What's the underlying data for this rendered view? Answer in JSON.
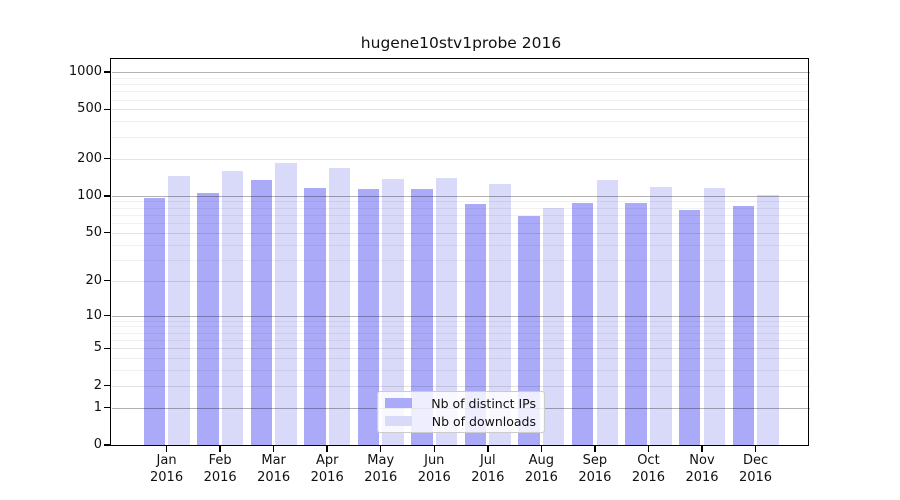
{
  "title": "hugene10stv1probe 2016",
  "chart_data": {
    "type": "bar",
    "title": "hugene10stv1probe 2016",
    "y_scale": "log(1+x)",
    "grid": true,
    "legend_position": "lower center",
    "categories": [
      "Jan 2016",
      "Feb 2016",
      "Mar 2016",
      "Apr 2016",
      "May 2016",
      "Jun 2016",
      "Jul 2016",
      "Aug 2016",
      "Sep 2016",
      "Oct 2016",
      "Nov 2016",
      "Dec 2016"
    ],
    "series": [
      {
        "name": "Nb of distinct IPs",
        "color": "#aaaaf9",
        "values": [
          96,
          106,
          135,
          116,
          113,
          114,
          86,
          68,
          87,
          88,
          77,
          82
        ]
      },
      {
        "name": "Nb of downloads",
        "color": "#d9d9f9",
        "values": [
          145,
          160,
          184,
          167,
          137,
          140,
          126,
          80,
          135,
          118,
          116,
          102
        ]
      }
    ],
    "y_tick_labels": [
      "1000",
      "500",
      "200",
      "100",
      "50",
      "20",
      "10",
      "5",
      "2",
      "1",
      "0"
    ],
    "y_tick_values": [
      1000,
      500,
      200,
      100,
      50,
      20,
      10,
      5,
      2,
      1,
      0
    ],
    "ylim": [
      0,
      1250
    ],
    "colors": {
      "axis": "#000000",
      "major_grid": "#b3b3b3",
      "mid_grid": "#e3e3e3",
      "minor_grid": "#f0f0f0",
      "background": "#ffffff"
    }
  }
}
